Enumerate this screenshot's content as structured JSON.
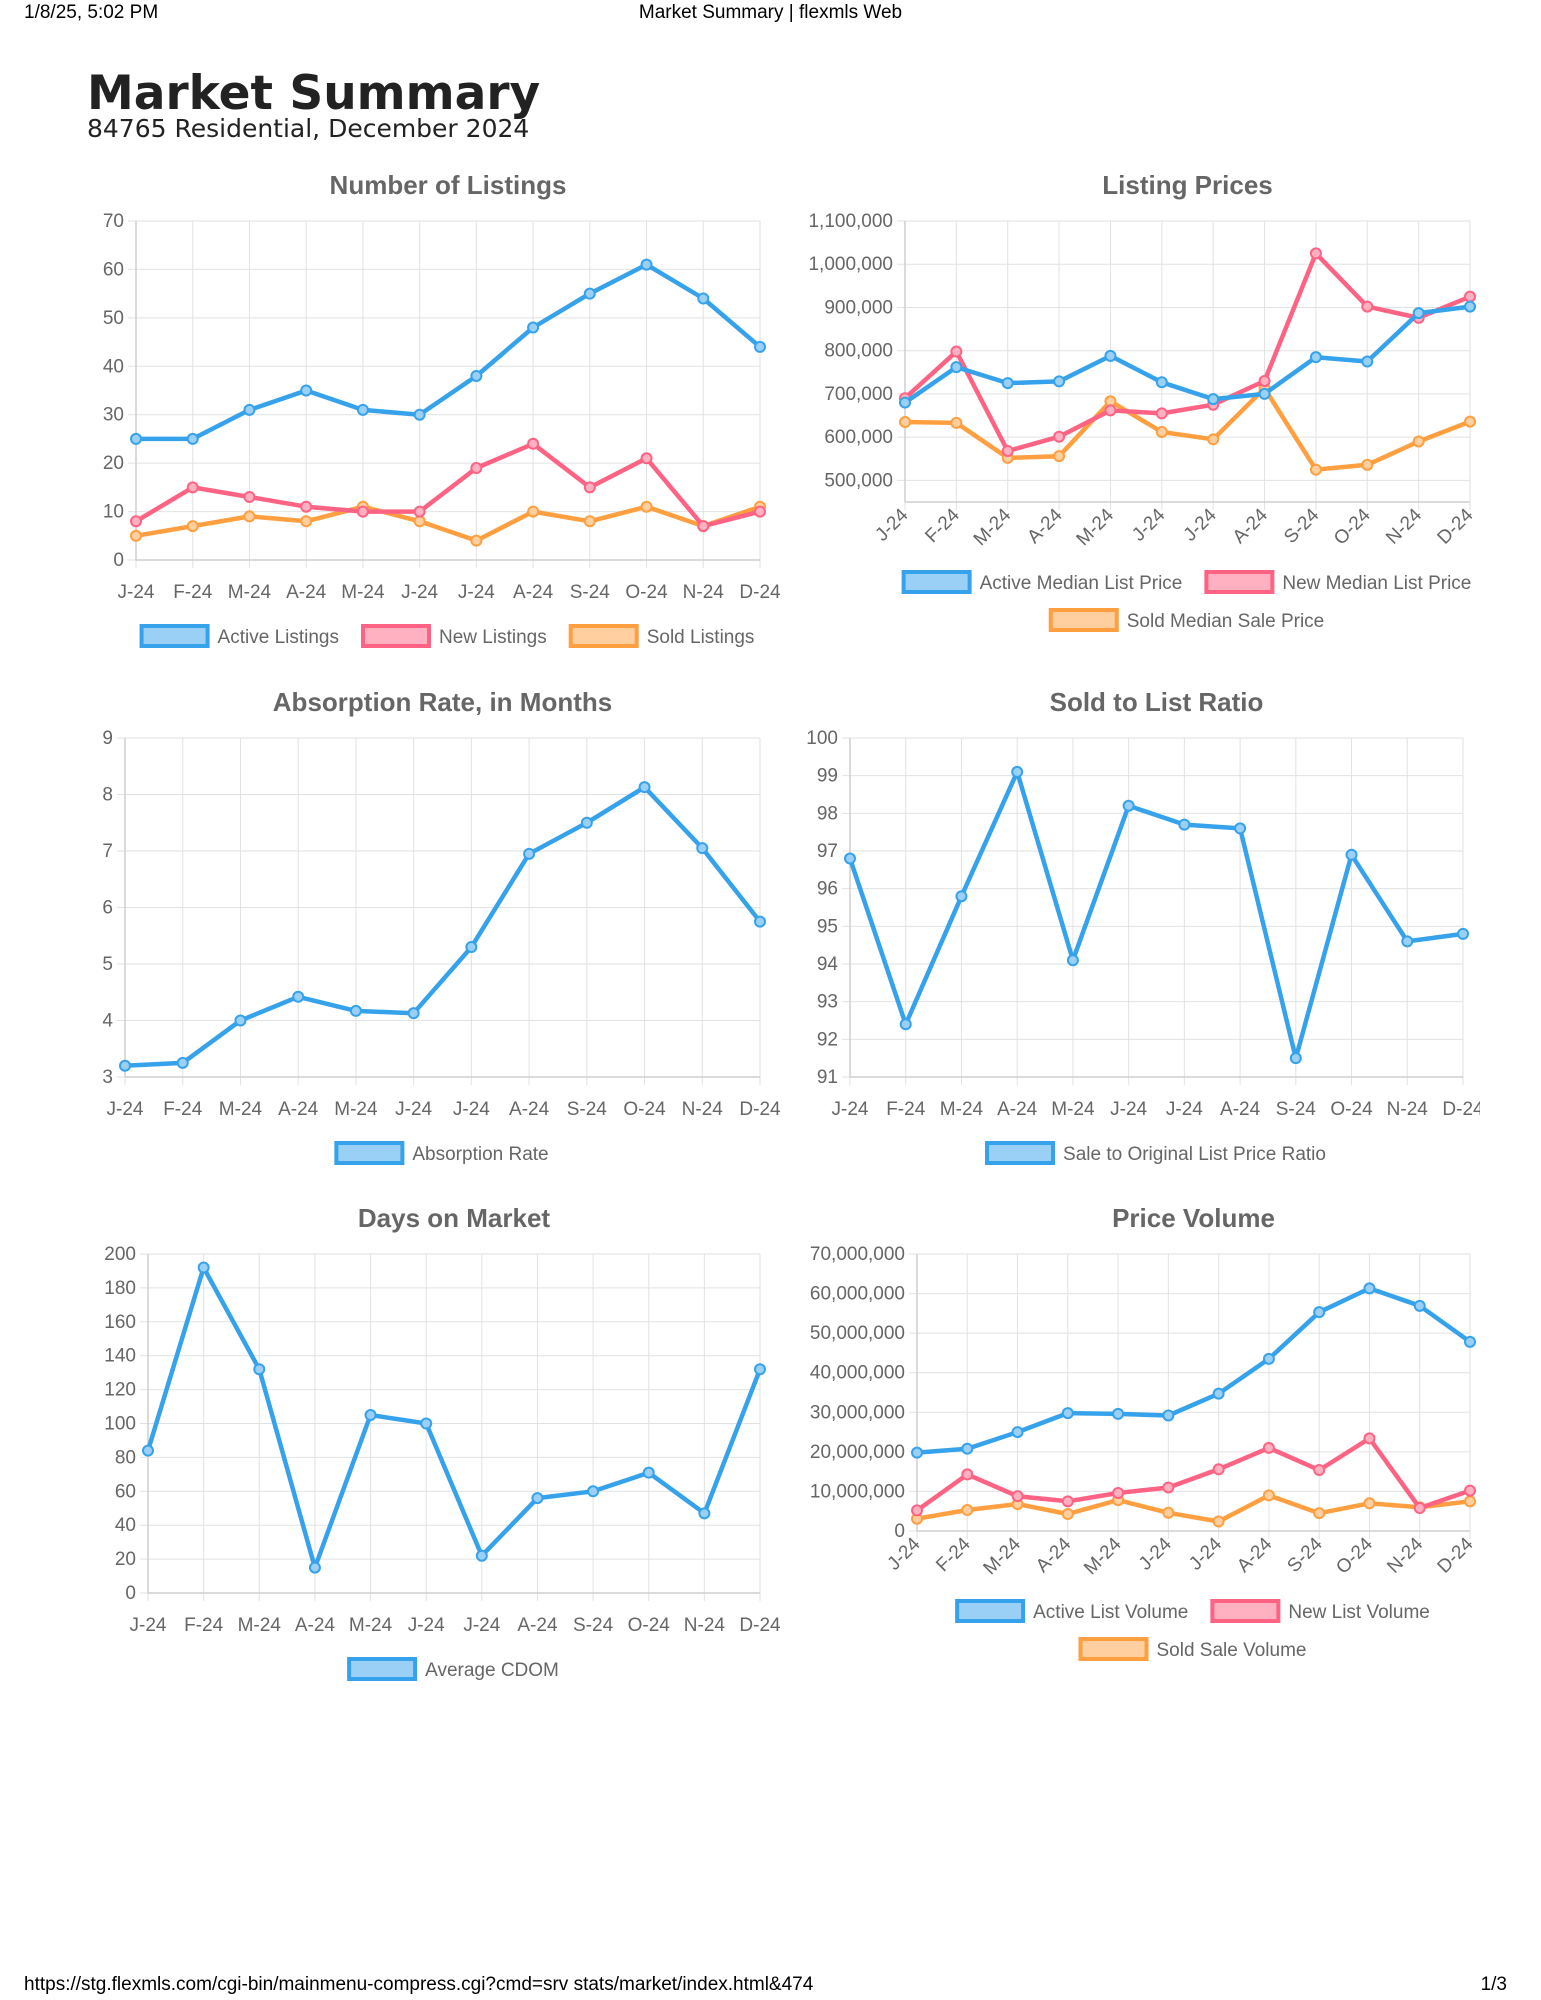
{
  "print_header": {
    "datetime": "1/8/25, 5:02 PM",
    "page_title": "Market Summary | flexmls Web"
  },
  "print_footer": {
    "url": "https://stg.flexmls.com/cgi-bin/mainmenu-compress.cgi?cmd=srv stats/market/index.html&474",
    "page": "1/3"
  },
  "report": {
    "title": "Market Summary",
    "subtitle": "84765 Residential, December 2024"
  },
  "colors": {
    "blue": "#36a2eb",
    "blue_fill": "#9ad0f5",
    "red": "#ff6384",
    "red_fill": "#ffb1c1",
    "orange": "#ff9f40",
    "orange_fill": "#ffcf9f"
  },
  "chart_data": [
    {
      "id": "listings",
      "type": "line",
      "title": "Number of Listings",
      "categories": [
        "J-24",
        "F-24",
        "M-24",
        "A-24",
        "M-24",
        "J-24",
        "J-24",
        "A-24",
        "S-24",
        "O-24",
        "N-24",
        "D-24"
      ],
      "ylim": [
        0,
        70
      ],
      "yticks": [
        0,
        10,
        20,
        30,
        40,
        50,
        60,
        70
      ],
      "ytick_labels": [
        "0",
        "10",
        "20",
        "30",
        "40",
        "50",
        "60",
        "70"
      ],
      "rotated_x": false,
      "legend_position": "bottom",
      "series": [
        {
          "name": "Active Listings",
          "color": "blue",
          "values": [
            25,
            25,
            31,
            35,
            31,
            30,
            38,
            48,
            55,
            61,
            54,
            44
          ]
        },
        {
          "name": "New Listings",
          "color": "red",
          "values": [
            8,
            15,
            13,
            11,
            10,
            10,
            19,
            24,
            15,
            21,
            7,
            10
          ]
        },
        {
          "name": "Sold Listings",
          "color": "orange",
          "values": [
            5,
            7,
            9,
            8,
            11,
            8,
            4,
            10,
            8,
            11,
            7,
            11
          ]
        }
      ]
    },
    {
      "id": "prices",
      "type": "line",
      "title": "Listing Prices",
      "categories": [
        "J-24",
        "F-24",
        "M-24",
        "A-24",
        "M-24",
        "J-24",
        "J-24",
        "A-24",
        "S-24",
        "O-24",
        "N-24",
        "D-24"
      ],
      "ylim": [
        450000,
        1100000
      ],
      "yticks": [
        500000,
        600000,
        700000,
        800000,
        900000,
        1000000,
        1100000
      ],
      "ytick_labels": [
        "500,000",
        "600,000",
        "700,000",
        "800,000",
        "900,000",
        "1,000,000",
        "1,100,000"
      ],
      "rotated_x": true,
      "legend_position": "bottom",
      "series": [
        {
          "name": "Active Median List Price",
          "color": "blue",
          "values": [
            680000,
            762000,
            725000,
            729000,
            788000,
            727000,
            688000,
            700000,
            785000,
            775000,
            887000,
            902000
          ]
        },
        {
          "name": "New Median List Price",
          "color": "red",
          "values": [
            690000,
            798000,
            568000,
            601000,
            662000,
            655000,
            675000,
            730000,
            1025000,
            902000,
            876000,
            925000
          ]
        },
        {
          "name": "Sold Median Sale Price",
          "color": "orange",
          "values": [
            635000,
            633000,
            552000,
            556000,
            683000,
            612000,
            595000,
            713000,
            525000,
            536000,
            590000,
            636000
          ]
        }
      ]
    },
    {
      "id": "absorption",
      "type": "line",
      "title": "Absorption Rate, in Months",
      "categories": [
        "J-24",
        "F-24",
        "M-24",
        "A-24",
        "M-24",
        "J-24",
        "J-24",
        "A-24",
        "S-24",
        "O-24",
        "N-24",
        "D-24"
      ],
      "ylim": [
        3,
        9
      ],
      "yticks": [
        3,
        4,
        5,
        6,
        7,
        8,
        9
      ],
      "ytick_labels": [
        "3",
        "4",
        "5",
        "6",
        "7",
        "8",
        "9"
      ],
      "rotated_x": false,
      "legend_position": "bottom",
      "series": [
        {
          "name": "Absorption Rate",
          "color": "blue",
          "values": [
            3.2,
            3.25,
            4.0,
            4.42,
            4.17,
            4.13,
            5.3,
            6.95,
            7.5,
            8.13,
            7.05,
            5.75
          ]
        }
      ]
    },
    {
      "id": "ratio",
      "type": "line",
      "title": "Sold to List Ratio",
      "categories": [
        "J-24",
        "F-24",
        "M-24",
        "A-24",
        "M-24",
        "J-24",
        "J-24",
        "A-24",
        "S-24",
        "O-24",
        "N-24",
        "D-24"
      ],
      "ylim": [
        91,
        100
      ],
      "yticks": [
        91,
        92,
        93,
        94,
        95,
        96,
        97,
        98,
        99,
        100
      ],
      "ytick_labels": [
        "91",
        "92",
        "93",
        "94",
        "95",
        "96",
        "97",
        "98",
        "99",
        "100"
      ],
      "rotated_x": false,
      "legend_position": "bottom",
      "series": [
        {
          "name": "Sale to Original List Price Ratio",
          "color": "blue",
          "values": [
            96.8,
            92.4,
            95.8,
            99.1,
            94.1,
            98.2,
            97.7,
            97.6,
            91.5,
            96.9,
            94.6,
            94.8
          ]
        }
      ]
    },
    {
      "id": "dom",
      "type": "line",
      "title": "Days on Market",
      "categories": [
        "J-24",
        "F-24",
        "M-24",
        "A-24",
        "M-24",
        "J-24",
        "J-24",
        "A-24",
        "S-24",
        "O-24",
        "N-24",
        "D-24"
      ],
      "ylim": [
        0,
        200
      ],
      "yticks": [
        0,
        20,
        40,
        60,
        80,
        100,
        120,
        140,
        160,
        180,
        200
      ],
      "ytick_labels": [
        "0",
        "20",
        "40",
        "60",
        "80",
        "100",
        "120",
        "140",
        "160",
        "180",
        "200"
      ],
      "rotated_x": false,
      "legend_position": "bottom",
      "series": [
        {
          "name": "Average CDOM",
          "color": "blue",
          "values": [
            84,
            192,
            132,
            15,
            105,
            100,
            22,
            56,
            60,
            71,
            47,
            132
          ]
        }
      ]
    },
    {
      "id": "volume",
      "type": "line",
      "title": "Price Volume",
      "categories": [
        "J-24",
        "F-24",
        "M-24",
        "A-24",
        "M-24",
        "J-24",
        "J-24",
        "A-24",
        "S-24",
        "O-24",
        "N-24",
        "D-24"
      ],
      "ylim": [
        0,
        70000000
      ],
      "yticks": [
        0,
        10000000,
        20000000,
        30000000,
        40000000,
        50000000,
        60000000,
        70000000
      ],
      "ytick_labels": [
        "0",
        "10,000,000",
        "20,000,000",
        "30,000,000",
        "40,000,000",
        "50,000,000",
        "60,000,000",
        "70,000,000"
      ],
      "rotated_x": true,
      "legend_position": "bottom",
      "series": [
        {
          "name": "Active List Volume",
          "color": "blue",
          "values": [
            19800000,
            20800000,
            25000000,
            29800000,
            29600000,
            29200000,
            34700000,
            43500000,
            55300000,
            61300000,
            56900000,
            47800000
          ]
        },
        {
          "name": "New List Volume",
          "color": "red",
          "values": [
            5200000,
            14300000,
            8800000,
            7500000,
            9600000,
            11000000,
            15600000,
            21000000,
            15400000,
            23400000,
            5800000,
            10200000
          ]
        },
        {
          "name": "Sold Sale Volume",
          "color": "orange",
          "values": [
            3100000,
            5300000,
            6800000,
            4300000,
            7800000,
            4600000,
            2400000,
            9000000,
            4500000,
            7000000,
            6000000,
            7500000
          ]
        }
      ]
    }
  ]
}
